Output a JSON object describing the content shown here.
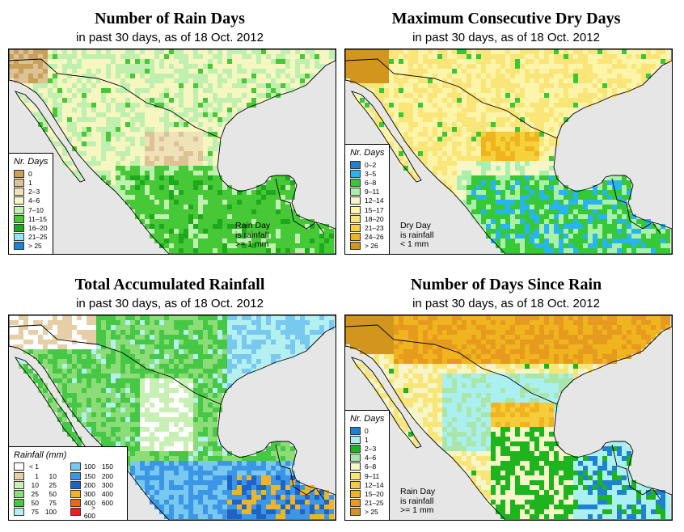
{
  "palettes": {
    "rain_days": [
      "#c8a05a",
      "#dcc294",
      "#f0e2b8",
      "#f6f6c0",
      "#bff0b0",
      "#46c837",
      "#1ea81e",
      "#8ce6f5",
      "#1e82d2"
    ],
    "dry_days": [
      "#1e82d2",
      "#28b4f0",
      "#37c837",
      "#aaf0aa",
      "#f6f6c8",
      "#fff5aa",
      "#fae678",
      "#f5d23c",
      "#f0b41e",
      "#d2961e"
    ],
    "rainfall": [
      "#ffffff",
      "#e6cfa6",
      "#c8f0b4",
      "#8cdc78",
      "#46c846",
      "#b4f0f0",
      "#78c8f0",
      "#3c96e6",
      "#1e64c8",
      "#f0b428",
      "#f06414",
      "#e61e1e"
    ],
    "since_rain": [
      "#1e82d2",
      "#aaf0f0",
      "#1eb41e",
      "#aae6aa",
      "#f6f6c8",
      "#fae678",
      "#f5cd3c",
      "#f0b41e",
      "#e69b1e",
      "#d2961e"
    ],
    "ocean": "#e6e6e6",
    "outside": "#ffffff"
  },
  "panels": [
    {
      "title": "Number of Rain Days",
      "subtitle": "in past 30 days, as of  18 Oct. 2012",
      "legend_title": "Nr. Days",
      "legend_items": [
        "0",
        "1",
        "2–3",
        "4–6",
        "7–10",
        "11–15",
        "16–20",
        "21–25",
        "> 25"
      ],
      "note": [
        "Rain Day",
        "is rainfall",
        ">= 1 mm"
      ]
    },
    {
      "title": "Maximum Consecutive Dry Days",
      "subtitle": "in past 30 days, as of  18 Oct. 2012",
      "legend_title": "Nr. Days",
      "legend_items": [
        "0–2",
        "3–5",
        "6–8",
        "9–11",
        "12–14",
        "15–17",
        "18–20",
        "21–23",
        "24–26",
        "> 26"
      ],
      "note": [
        "Dry Day",
        "is rainfall",
        "< 1 mm"
      ]
    },
    {
      "title": "Total Accumulated Rainfall",
      "subtitle": "in past 30 days, as of  18 Oct. 2012",
      "legend_title": "Rainfall (mm)",
      "legend_rows": [
        {
          "a": "< 1",
          "b": ""
        },
        {
          "a": "1",
          "b": "10"
        },
        {
          "a": "10",
          "b": "25"
        },
        {
          "a": "25",
          "b": "50"
        },
        {
          "a": "50",
          "b": "75"
        },
        {
          "a": "75",
          "b": "100"
        },
        {
          "a": "100",
          "b": "150"
        },
        {
          "a": "150",
          "b": "200"
        },
        {
          "a": "200",
          "b": "300"
        },
        {
          "a": "300",
          "b": "400"
        },
        {
          "a": "400",
          "b": "600"
        },
        {
          "a": "> 600",
          "b": ""
        }
      ]
    },
    {
      "title": "Number of Days Since Rain",
      "subtitle": "in past 30 days, as of  18 Oct. 2012",
      "legend_title": "Nr. Days",
      "legend_items": [
        "0",
        "1",
        "2–3",
        "4–6",
        "6–8",
        "9–11",
        "12–14",
        "15–20",
        "21–25",
        "> 25"
      ],
      "note": [
        "Rain Day",
        "is rainfall",
        ">= 1 mm"
      ]
    }
  ]
}
